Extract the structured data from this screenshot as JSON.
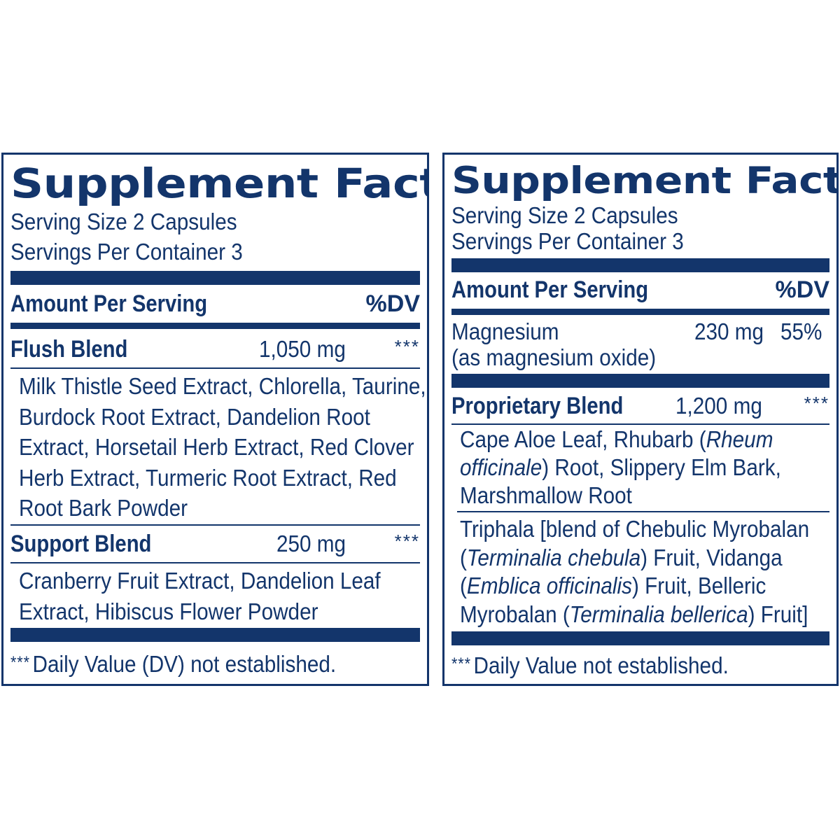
{
  "left": {
    "title": "Supplement Facts",
    "serving_size": "Serving Size 2 Capsules",
    "servings_per_container": "Servings Per Container 3",
    "amount_header": "Amount Per Serving",
    "dv_header": "%DV",
    "flush_blend": {
      "name": "Flush Blend",
      "amount": "1,050 mg",
      "dv": "***",
      "ingredients": "Milk Thistle Seed Extract, Chlorella, Taurine, Burdock Root Extract, Dandelion Root Extract, Horsetail Herb Extract, Red Clover Herb Extract, Turmeric Root Extract, Red Root Bark Powder"
    },
    "support_blend": {
      "name": "Support Blend",
      "amount": "250 mg",
      "dv": "***",
      "ingredients": "Cranberry Fruit Extract, Dandelion Leaf Extract, Hibiscus Flower Powder"
    },
    "footnote_marker": "***",
    "footnote": "Daily Value (DV) not established."
  },
  "right": {
    "title": "Supplement Facts",
    "serving_size": "Serving Size 2 Capsules",
    "servings_per_container": "Servings Per Container 3",
    "amount_header": "Amount Per Serving",
    "dv_header": "%DV",
    "magnesium": {
      "name": "Magnesium",
      "form": "(as magnesium oxide)",
      "amount": "230 mg",
      "dv": "55%"
    },
    "proprietary_blend": {
      "name": "Proprietary Blend",
      "amount": "1,200 mg",
      "dv": "***",
      "ingredients_1": {
        "p1": "Cape Aloe Leaf, Rhubarb (",
        "i1": "Rheum officinale",
        "p2": ") Root, Slippery Elm Bark, Marshmallow Root"
      },
      "ingredients_2": {
        "p1": "Triphala [blend of Chebulic Myrobalan (",
        "i1": "Terminalia chebula",
        "p2": ") Fruit, Vidanga (",
        "i2": "Emblica officinalis",
        "p3": ") Fruit, Belleric Myrobalan (",
        "i3": "Terminalia bellerica",
        "p4": ") Fruit]"
      }
    },
    "footnote_marker": "***",
    "footnote": "Daily Value not established."
  },
  "colors": {
    "label_blue": "#13356b",
    "background": "#ffffff"
  }
}
